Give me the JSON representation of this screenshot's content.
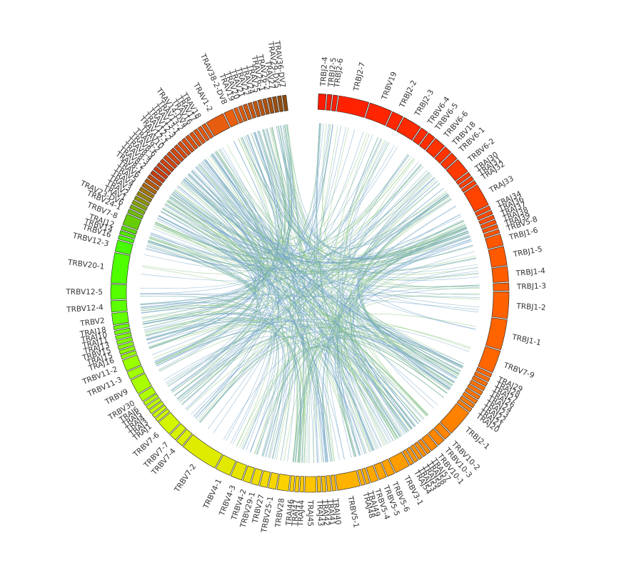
{
  "chart_data": {
    "type": "chord",
    "title": "",
    "colors": {
      "link_blue": "#6fa3c6",
      "link_green": "#86c57c",
      "segment_start": "#ff1a00",
      "segment_mid": "#ffd000",
      "segment_green": "#44ff00",
      "segment_end": "#b0120a"
    },
    "segments": [
      {
        "label": "TRBJ2-4",
        "size": 1
      },
      {
        "label": "TRBJ2-5",
        "size": 0.6
      },
      {
        "label": "TRBJ2-6",
        "size": 0.6
      },
      {
        "label": "TRBJ2-7",
        "size": 4
      },
      {
        "label": "TRBV19",
        "size": 3
      },
      {
        "label": "TRBJ2-2",
        "size": 1.5
      },
      {
        "label": "TRBJ2-3",
        "size": 2.5
      },
      {
        "label": "TRBV6-4",
        "size": 1
      },
      {
        "label": "TRBV6-5",
        "size": 1
      },
      {
        "label": "TRBV6-6",
        "size": 1.5
      },
      {
        "label": "TRBV18",
        "size": 1
      },
      {
        "label": "TRBV6-1",
        "size": 1
      },
      {
        "label": "TRBV6-2",
        "size": 2
      },
      {
        "label": "TRAJ30",
        "size": 0.5
      },
      {
        "label": "TRAJ31",
        "size": 0.5
      },
      {
        "label": "TRAJ32",
        "size": 0.5
      },
      {
        "label": "TRAJ33",
        "size": 3
      },
      {
        "label": "TRAJ34",
        "size": 0.5
      },
      {
        "label": "TRAJ36",
        "size": 0.5
      },
      {
        "label": "TRAJ37",
        "size": 0.5
      },
      {
        "label": "TRAJ38",
        "size": 0.5
      },
      {
        "label": "TRAJ39",
        "size": 0.5
      },
      {
        "label": "TRBV5-8",
        "size": 0.5
      },
      {
        "label": "TRBJ1-6",
        "size": 1.5
      },
      {
        "label": "TRBJ1-5",
        "size": 2.5
      },
      {
        "label": "TRBJ1-4",
        "size": 2
      },
      {
        "label": "TRBJ1-3",
        "size": 1
      },
      {
        "label": "TRBJ1-2",
        "size": 3.5
      },
      {
        "label": "TRBJ1-1",
        "size": 4
      },
      {
        "label": "TRBV7-9",
        "size": 3
      },
      {
        "label": "TRAJ29",
        "size": 0.5
      },
      {
        "label": "TRAJ28",
        "size": 0.5
      },
      {
        "label": "TRAJ27",
        "size": 0.5
      },
      {
        "label": "TRAJ26",
        "size": 0.5
      },
      {
        "label": "TRAJ24",
        "size": 0.5
      },
      {
        "label": "TRAJ23",
        "size": 0.5
      },
      {
        "label": "TRAJ22",
        "size": 0.5
      },
      {
        "label": "TRAJ21",
        "size": 0.5
      },
      {
        "label": "TRAJ20",
        "size": 0.5
      },
      {
        "label": "TRBJ2-1",
        "size": 3.5
      },
      {
        "label": "TRBV10-2",
        "size": 1
      },
      {
        "label": "TRBV10-3",
        "size": 1
      },
      {
        "label": "TRBV10-1",
        "size": 1
      },
      {
        "label": "TRAJ57",
        "size": 0.5
      },
      {
        "label": "TRAJ58",
        "size": 0.5
      },
      {
        "label": "TRAJ59",
        "size": 0.5
      },
      {
        "label": "TRAJ53",
        "size": 0.5
      },
      {
        "label": "TRAJ54",
        "size": 0.5
      },
      {
        "label": "TRBV3-1",
        "size": 2
      },
      {
        "label": "TRBV5-6",
        "size": 1
      },
      {
        "label": "TRBV5-5",
        "size": 1
      },
      {
        "label": "TRBV5-4",
        "size": 1
      },
      {
        "label": "TRAJ49",
        "size": 0.5
      },
      {
        "label": "TRAJ48",
        "size": 0.5
      },
      {
        "label": "TRBV5-1",
        "size": 3
      },
      {
        "label": "TRAJ40",
        "size": 0.5
      },
      {
        "label": "TRAJ41",
        "size": 0.5
      },
      {
        "label": "TRAJ42",
        "size": 0.5
      },
      {
        "label": "TRAJ43",
        "size": 0.5
      },
      {
        "label": "TRAJ45",
        "size": 1.5
      },
      {
        "label": "TRAJ44",
        "size": 0.5
      },
      {
        "label": "TRAJ47",
        "size": 0.5
      },
      {
        "label": "TRAJ46",
        "size": 0.5
      },
      {
        "label": "TRBV28",
        "size": 1.5
      },
      {
        "label": "TRBV25-1",
        "size": 1
      },
      {
        "label": "TRBV27",
        "size": 1
      },
      {
        "label": "TRBV29-1",
        "size": 1
      },
      {
        "label": "TRBV4-2",
        "size": 1
      },
      {
        "label": "TRBV4-3",
        "size": 1.5
      },
      {
        "label": "TRBV4-1",
        "size": 2
      },
      {
        "label": "TRBV7-2",
        "size": 5
      },
      {
        "label": "TRBV7-4",
        "size": 1
      },
      {
        "label": "TRBV7-7",
        "size": 1
      },
      {
        "label": "TRBV7-6",
        "size": 2
      },
      {
        "label": "TRAJ1",
        "size": 0.5
      },
      {
        "label": "TRAJ3",
        "size": 0.5
      },
      {
        "label": "TRAJ4",
        "size": 0.5
      },
      {
        "label": "TRAJ5",
        "size": 0.5
      },
      {
        "label": "TRAJ6",
        "size": 0.5
      },
      {
        "label": "TRBV30",
        "size": 1
      },
      {
        "label": "TRBV9",
        "size": 2
      },
      {
        "label": "TRBV11-3",
        "size": 1
      },
      {
        "label": "TRBV11-2",
        "size": 1.5
      },
      {
        "label": "TRAJ16",
        "size": 0.5
      },
      {
        "label": "TRAJ15",
        "size": 0.5
      },
      {
        "label": "TRBV15",
        "size": 0.5
      },
      {
        "label": "TRAJ13",
        "size": 0.5
      },
      {
        "label": "TRAJ11",
        "size": 0.5
      },
      {
        "label": "TRAJ10",
        "size": 0.5
      },
      {
        "label": "TRAJ18",
        "size": 0.5
      },
      {
        "label": "TRBV2",
        "size": 1.5
      },
      {
        "label": "TRBV12-4",
        "size": 1.5
      },
      {
        "label": "TRBV12-5",
        "size": 2
      },
      {
        "label": "TRBV20-1",
        "size": 4
      },
      {
        "label": "TRBV12-3",
        "size": 1.5
      },
      {
        "label": "TRBV16",
        "size": 0.5
      },
      {
        "label": "TRBV14",
        "size": 0.5
      },
      {
        "label": "TRAJ12",
        "size": 0.5
      },
      {
        "label": "TRBV7-8",
        "size": 1.5
      },
      {
        "label": "TRBV24-1",
        "size": 0.5
      },
      {
        "label": "TRAV23-DV6",
        "size": 0.5
      },
      {
        "label": "TRAV1",
        "size": 0.5
      },
      {
        "label": "TRAV2",
        "size": 0.5
      },
      {
        "label": "TRAV3",
        "size": 0.5
      },
      {
        "label": "TRAV4",
        "size": 0.5
      },
      {
        "label": "TRAV5",
        "size": 0.5
      },
      {
        "label": "TRAV6",
        "size": 0.5
      },
      {
        "label": "TRAV8-1",
        "size": 0.5
      },
      {
        "label": "TRAV8-2",
        "size": 0.5
      },
      {
        "label": "TRAV8-3",
        "size": 0.5
      },
      {
        "label": "TRAV8-4",
        "size": 0.5
      },
      {
        "label": "TRAV8-6",
        "size": 0.5
      },
      {
        "label": "TRAV9-2",
        "size": 0.5
      },
      {
        "label": "TRAV10",
        "size": 0.5
      },
      {
        "label": "TRAV12-1",
        "size": 0.5
      },
      {
        "label": "TRAV12-2",
        "size": 0.5
      },
      {
        "label": "TRAV12-3",
        "size": 0.5
      },
      {
        "label": "TRAV13-1",
        "size": 0.5
      },
      {
        "label": "TRAV13-2",
        "size": 0.5
      },
      {
        "label": "TRAV14-DV4",
        "size": 0.5
      },
      {
        "label": "TRAV16",
        "size": 0.5
      },
      {
        "label": "TRAV17",
        "size": 0.5
      },
      {
        "label": "TRAV18",
        "size": 0.5
      },
      {
        "label": "TRAV1-2",
        "size": 2.5
      },
      {
        "label": "TRAV38-2-DV8",
        "size": 1.2
      },
      {
        "label": "TRAV19",
        "size": 0.5
      },
      {
        "label": "TRAV20",
        "size": 0.5
      },
      {
        "label": "TRAV21",
        "size": 0.5
      },
      {
        "label": "TRAV22",
        "size": 0.5
      },
      {
        "label": "TRAV24",
        "size": 0.5
      },
      {
        "label": "TRAV25",
        "size": 0.5
      },
      {
        "label": "TRAV26-1",
        "size": 0.5
      },
      {
        "label": "TRAV26-2",
        "size": 0.5
      },
      {
        "label": "TRAV27",
        "size": 0.5
      },
      {
        "label": "TRAV29-DV5",
        "size": 0.5
      },
      {
        "label": "TRAV36-DV7",
        "size": 0.5
      }
    ]
  }
}
